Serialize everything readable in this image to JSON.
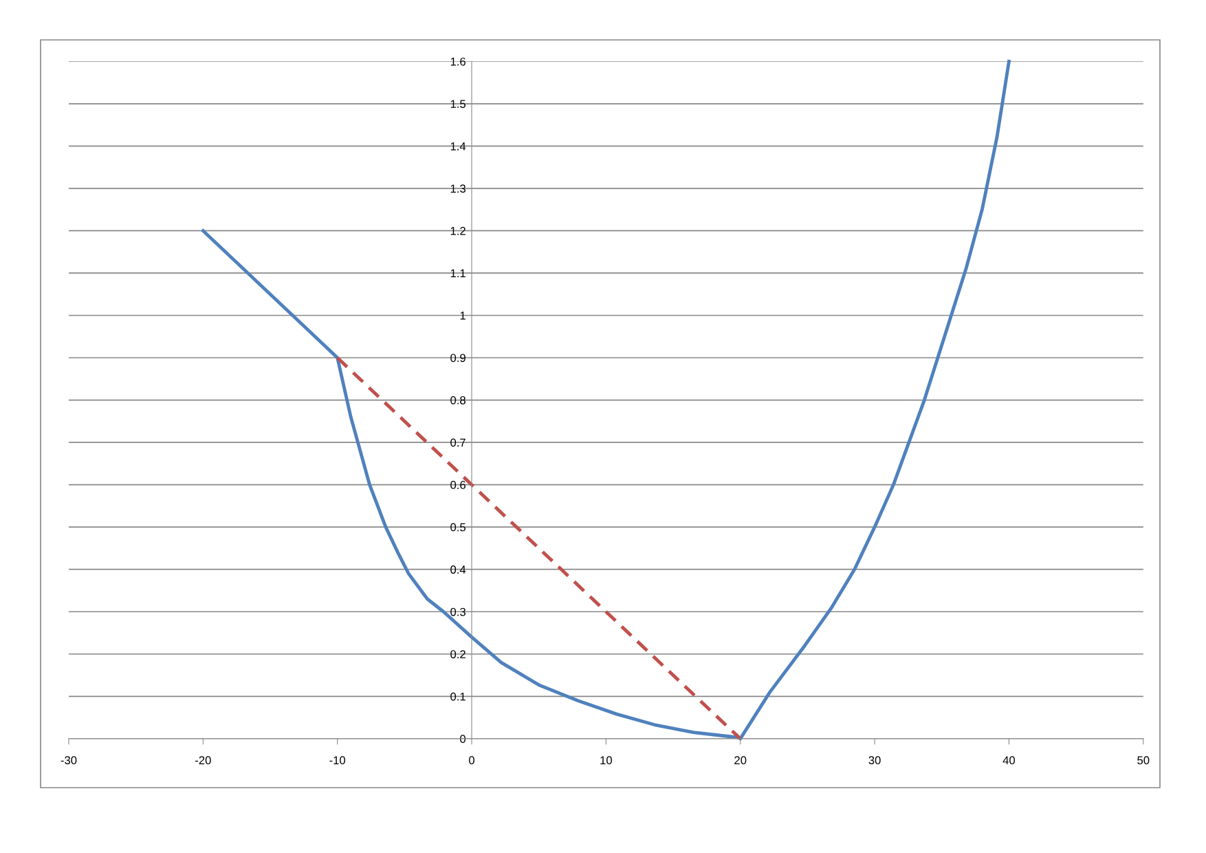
{
  "chart_data": {
    "type": "line",
    "xlim": [
      -30,
      50
    ],
    "xticks": [
      -30,
      -20,
      -10,
      0,
      10,
      20,
      30,
      40,
      50
    ],
    "ylim": [
      0,
      1.6
    ],
    "yticks": [
      0,
      0.1,
      0.2,
      0.3,
      0.4,
      0.5,
      0.6,
      0.7,
      0.8,
      0.9,
      1,
      1.1,
      1.2,
      1.3,
      1.4,
      1.5,
      1.6
    ],
    "grid": "y",
    "marker": "none",
    "series": [
      {
        "color": "#4f81bd",
        "line_style": "solid",
        "x": [
          -20,
          -11,
          -10,
          -9,
          -8.3,
          -7.6,
          -6.4,
          -5.5,
          -4.7,
          -3.3,
          -2.1,
          0,
          2.2,
          5,
          7.9,
          10.8,
          13.6,
          16.5,
          19.8,
          20,
          22.2,
          24.8,
          26.8,
          28.5,
          30,
          31.4,
          33.7,
          35.7,
          36.8,
          38,
          39.1,
          40
        ],
        "values": [
          1.2,
          0.93,
          0.9,
          0.76,
          0.68,
          0.6,
          0.5,
          0.44,
          0.39,
          0.33,
          0.3,
          0.24,
          0.18,
          0.127,
          0.09,
          0.058,
          0.033,
          0.015,
          0.003,
          0,
          0.11,
          0.22,
          0.31,
          0.4,
          0.5,
          0.6,
          0.8,
          1.0,
          1.11,
          1.25,
          1.42,
          1.6
        ]
      },
      {
        "color": "#c0504d",
        "line_style": "dashed",
        "x": [
          -10,
          20
        ],
        "values": [
          0.9,
          0
        ]
      }
    ]
  }
}
